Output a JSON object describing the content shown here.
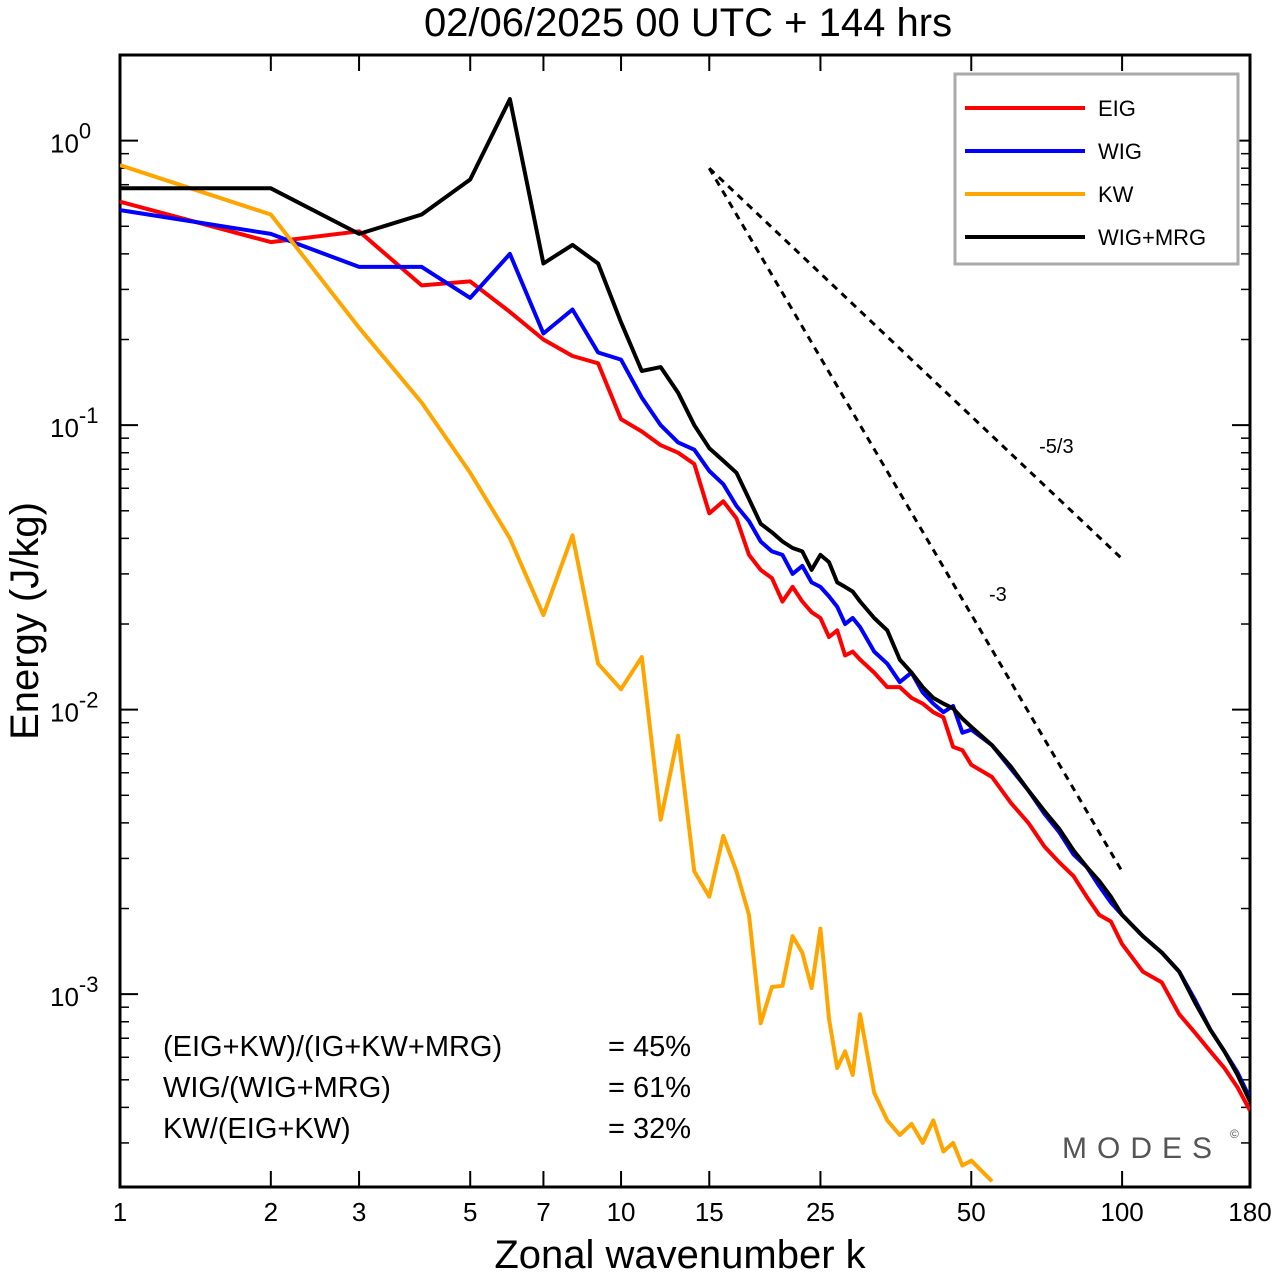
{
  "title": "02/06/2025  00 UTC  + 144 hrs",
  "brand": "MODES",
  "brand_mark": "©",
  "stats": [
    {
      "label": "(EIG+KW)/(IG+KW+MRG)",
      "value": "= 45%"
    },
    {
      "label": "WIG/(WIG+MRG)",
      "value": "= 61%"
    },
    {
      "label": "KW/(EIG+KW)",
      "value": "= 32%"
    }
  ],
  "chart_data": {
    "type": "line",
    "xlabel": "Zonal wavenumber k",
    "ylabel": "Energy (J/kg)",
    "x_scale": "log",
    "y_scale": "log",
    "xlim": [
      1,
      180
    ],
    "ylim": [
      0.00021,
      2.0
    ],
    "x_ticks": [
      1,
      2,
      3,
      5,
      7,
      10,
      15,
      25,
      50,
      100,
      180
    ],
    "x_tick_labels": [
      "1",
      "2",
      "3",
      "5",
      "7",
      "10",
      "15",
      "25",
      "50",
      "100",
      "180"
    ],
    "y_ticks": [
      {
        "value": 1,
        "base": "10",
        "exp": "0"
      },
      {
        "value": 0.1,
        "base": "10",
        "exp": "-1"
      },
      {
        "value": 0.01,
        "base": "10",
        "exp": "-2"
      },
      {
        "value": 0.001,
        "base": "10",
        "exp": "-3"
      }
    ],
    "legend_position": "top-right",
    "grid": false,
    "series": [
      {
        "name": "EIG",
        "color": "#ff0000",
        "x": [
          1,
          2,
          3,
          4,
          5,
          6,
          7,
          8,
          9,
          10,
          11,
          12,
          13,
          14,
          15,
          16,
          17,
          18,
          19,
          20,
          21,
          22,
          23,
          24,
          25,
          26,
          27,
          28,
          29,
          30,
          32,
          34,
          36,
          38,
          40,
          42,
          44,
          46,
          48,
          50,
          55,
          60,
          65,
          70,
          75,
          80,
          85,
          90,
          95,
          100,
          110,
          120,
          130,
          140,
          150,
          160,
          170,
          180
        ],
        "y": [
          0.61,
          0.44,
          0.48,
          0.31,
          0.32,
          0.25,
          0.2,
          0.175,
          0.165,
          0.105,
          0.095,
          0.085,
          0.08,
          0.073,
          0.049,
          0.054,
          0.047,
          0.035,
          0.031,
          0.029,
          0.024,
          0.027,
          0.024,
          0.022,
          0.021,
          0.018,
          0.019,
          0.0155,
          0.016,
          0.015,
          0.0135,
          0.012,
          0.012,
          0.011,
          0.0105,
          0.0098,
          0.0094,
          0.0074,
          0.0072,
          0.0064,
          0.0058,
          0.0047,
          0.004,
          0.0033,
          0.0029,
          0.0026,
          0.0022,
          0.0019,
          0.0018,
          0.0015,
          0.0012,
          0.0011,
          0.00085,
          0.00073,
          0.00063,
          0.00055,
          0.00047,
          0.00039
        ]
      },
      {
        "name": "WIG",
        "color": "#0000ff",
        "x": [
          1,
          2,
          3,
          4,
          5,
          6,
          7,
          8,
          9,
          10,
          11,
          12,
          13,
          14,
          15,
          16,
          17,
          18,
          19,
          20,
          21,
          22,
          23,
          24,
          25,
          26,
          27,
          28,
          29,
          30,
          32,
          34,
          36,
          38,
          40,
          42,
          44,
          46,
          48,
          50,
          55,
          60,
          65,
          70,
          75,
          80,
          85,
          90,
          95,
          100,
          110,
          120,
          130,
          140,
          150,
          160,
          170,
          180
        ],
        "y": [
          0.57,
          0.47,
          0.36,
          0.36,
          0.28,
          0.4,
          0.21,
          0.255,
          0.18,
          0.17,
          0.125,
          0.1,
          0.087,
          0.082,
          0.069,
          0.062,
          0.052,
          0.046,
          0.039,
          0.036,
          0.035,
          0.03,
          0.032,
          0.028,
          0.027,
          0.025,
          0.023,
          0.02,
          0.021,
          0.0195,
          0.016,
          0.0145,
          0.0125,
          0.0135,
          0.0115,
          0.0105,
          0.0098,
          0.0103,
          0.0083,
          0.0085,
          0.0075,
          0.0062,
          0.0052,
          0.0043,
          0.0037,
          0.0031,
          0.0028,
          0.0024,
          0.0021,
          0.0019,
          0.0016,
          0.0014,
          0.0012,
          0.00095,
          0.00075,
          0.00063,
          0.00053,
          0.00043
        ]
      },
      {
        "name": "KW",
        "color": "#ffa500",
        "x": [
          1,
          2,
          3,
          4,
          5,
          6,
          7,
          8,
          9,
          10,
          11,
          12,
          13,
          14,
          15,
          16,
          17,
          18,
          19,
          20,
          21,
          22,
          23,
          24,
          25,
          26,
          27,
          28,
          29,
          30,
          32,
          34,
          36,
          38,
          40,
          42,
          44,
          46,
          48,
          50,
          55
        ],
        "y": [
          0.82,
          0.55,
          0.22,
          0.12,
          0.068,
          0.04,
          0.0215,
          0.041,
          0.0145,
          0.0118,
          0.0153,
          0.0041,
          0.0081,
          0.0027,
          0.0022,
          0.0036,
          0.0027,
          0.0019,
          0.00079,
          0.00106,
          0.00107,
          0.0016,
          0.0014,
          0.00105,
          0.0017,
          0.00082,
          0.00055,
          0.00063,
          0.00052,
          0.00085,
          0.00045,
          0.00036,
          0.00032,
          0.00035,
          0.0003,
          0.00036,
          0.00028,
          0.0003,
          0.00025,
          0.00026,
          0.00022
        ]
      },
      {
        "name": "WIG+MRG",
        "color": "#000000",
        "x": [
          1,
          2,
          3,
          4,
          5,
          6,
          7,
          8,
          9,
          10,
          11,
          12,
          13,
          14,
          15,
          16,
          17,
          18,
          19,
          20,
          21,
          22,
          23,
          24,
          25,
          26,
          27,
          28,
          29,
          30,
          32,
          34,
          36,
          38,
          40,
          42,
          44,
          46,
          48,
          50,
          55,
          60,
          65,
          70,
          75,
          80,
          85,
          90,
          95,
          100,
          110,
          120,
          130,
          140,
          150,
          160,
          170,
          180
        ],
        "y": [
          0.68,
          0.68,
          0.47,
          0.55,
          0.73,
          1.4,
          0.37,
          0.43,
          0.37,
          0.23,
          0.155,
          0.16,
          0.13,
          0.1,
          0.083,
          0.075,
          0.068,
          0.055,
          0.045,
          0.042,
          0.039,
          0.037,
          0.036,
          0.031,
          0.035,
          0.033,
          0.028,
          0.027,
          0.026,
          0.024,
          0.021,
          0.019,
          0.015,
          0.0135,
          0.012,
          0.011,
          0.0105,
          0.0101,
          0.0093,
          0.0087,
          0.0075,
          0.0063,
          0.0052,
          0.0044,
          0.0038,
          0.0032,
          0.0028,
          0.0025,
          0.0022,
          0.0019,
          0.0016,
          0.0014,
          0.0012,
          0.00093,
          0.00075,
          0.00063,
          0.00052,
          0.00042
        ]
      }
    ],
    "reference_slopes": [
      {
        "label": "-5/3",
        "slope": -1.6667,
        "x": [
          15,
          100
        ],
        "y0": 0.8
      },
      {
        "label": "-3",
        "slope": -3,
        "x": [
          15,
          100
        ],
        "y0": 0.8
      }
    ]
  }
}
